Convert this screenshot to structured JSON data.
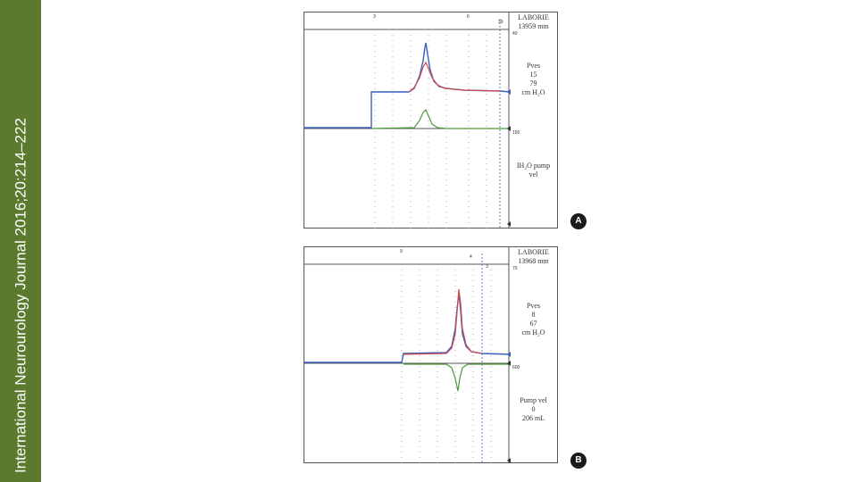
{
  "sidebar": {
    "citation": "International Neurourology Journal 2016;20:214–222",
    "color": "#5b7a2e"
  },
  "panels": [
    {
      "id": "A",
      "brand": "LABORIE",
      "duration": "13959 mm",
      "pves_symbol": "Pves",
      "pves_values": [
        "15",
        "79"
      ],
      "pves_unit": "cm H₂O",
      "channel2": [
        "IH₂O pump",
        "vel"
      ],
      "badge": "A",
      "top_ticks": [
        "3",
        "6",
        "39"
      ],
      "scale_upper": "40",
      "scale_lower": "150"
    },
    {
      "id": "B",
      "brand": "LABORIE",
      "duration": "13968 mm",
      "pves_symbol": "Pves",
      "pves_values": [
        "8",
        "67"
      ],
      "pves_unit": "cm H₂O",
      "channel2": [
        "Pump vel",
        "0",
        "206 mL"
      ],
      "badge": "B",
      "top_ticks": [
        "9",
        "4",
        "3"
      ],
      "scale_upper": "70",
      "scale_lower": "600"
    }
  ],
  "colors": {
    "blue": "#3a5fc0",
    "red": "#d14a4a",
    "green": "#4a9a3a",
    "grid": "#999999"
  }
}
